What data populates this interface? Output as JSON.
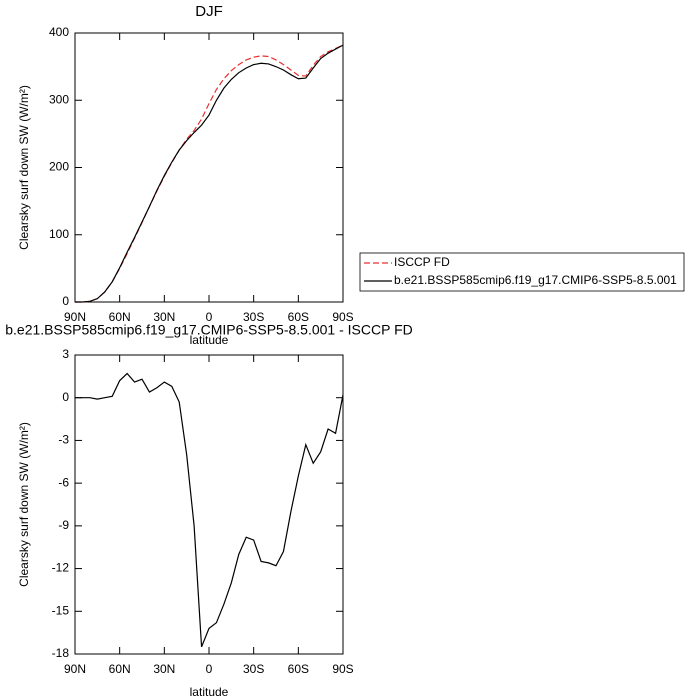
{
  "chart_data": [
    {
      "type": "line",
      "title": "DJF",
      "xlabel": "latitude",
      "ylabel": "Clearsky surf down SW (W/m²)",
      "x": [
        90,
        85,
        80,
        75,
        70,
        65,
        60,
        55,
        50,
        45,
        40,
        35,
        30,
        25,
        20,
        15,
        10,
        5,
        0,
        -5,
        -10,
        -15,
        -20,
        -25,
        -30,
        -35,
        -40,
        -45,
        -50,
        -55,
        -60,
        -65,
        -70,
        -75,
        -80,
        -85,
        -90
      ],
      "series": [
        {
          "name": "ISCCP FD",
          "color": "#e8312f",
          "linestyle": "dashed",
          "values": [
            0,
            0,
            1,
            5,
            15,
            30,
            50,
            72,
            95,
            118,
            142,
            165,
            187,
            207,
            226,
            242,
            255,
            272,
            295,
            316,
            332,
            344,
            353,
            360,
            364,
            366,
            365,
            360,
            353,
            345,
            337,
            336,
            352,
            365,
            372,
            377,
            382
          ]
        },
        {
          "name": "b.e21.BSSP585cmip6.f19_g17.CMIP6-SSP5-8.5.001",
          "color": "#000000",
          "linestyle": "solid",
          "values": [
            0,
            0,
            1,
            5,
            15,
            30,
            51,
            74,
            96,
            119,
            142,
            166,
            188,
            208,
            226,
            240,
            252,
            263,
            278,
            300,
            318,
            331,
            341,
            348,
            353,
            355,
            354,
            350,
            345,
            338,
            332,
            333,
            348,
            362,
            370,
            376,
            382
          ]
        }
      ],
      "xlim": [
        90,
        -90
      ],
      "xticks": [
        {
          "value": 90,
          "label": "90N"
        },
        {
          "value": 60,
          "label": "60N"
        },
        {
          "value": 30,
          "label": "30N"
        },
        0,
        {
          "value": -30,
          "label": "30S"
        },
        {
          "value": -60,
          "label": "60S"
        },
        {
          "value": -90,
          "label": "90S"
        }
      ],
      "ylim": [
        0,
        400
      ],
      "yticks": [
        0,
        100,
        200,
        300,
        400
      ],
      "legend": "right"
    },
    {
      "type": "line",
      "title": "b.e21.BSSP585cmip6.f19_g17.CMIP6-SSP5-8.5.001 - ISCCP FD",
      "xlabel": "latitude",
      "ylabel": "Clearsky surf down SW (W/m²)",
      "x": [
        90,
        85,
        80,
        75,
        70,
        65,
        60,
        55,
        50,
        45,
        40,
        35,
        30,
        25,
        20,
        15,
        10,
        5,
        0,
        -5,
        -10,
        -15,
        -20,
        -25,
        -30,
        -35,
        -40,
        -45,
        -50,
        -55,
        -60,
        -65,
        -70,
        -75,
        -80,
        -85,
        -90
      ],
      "series": [
        {
          "color": "#000000",
          "linestyle": "solid",
          "values": [
            0,
            0,
            0,
            -0.1,
            0,
            0.1,
            1.2,
            1.7,
            1.1,
            1.3,
            0.4,
            0.7,
            1.1,
            0.8,
            -0.3,
            -4,
            -9,
            -17.5,
            -16.2,
            -15.8,
            -14.5,
            -13,
            -11,
            -9.8,
            -10,
            -11.5,
            -11.6,
            -11.8,
            -10.8,
            -8,
            -5.5,
            -3.3,
            -4.6,
            -3.8,
            -2.2,
            -2.5,
            0.2
          ]
        }
      ],
      "xlim": [
        90,
        -90
      ],
      "xticks": [
        {
          "value": 90,
          "label": "90N"
        },
        {
          "value": 60,
          "label": "60N"
        },
        {
          "value": 30,
          "label": "30N"
        },
        0,
        {
          "value": -30,
          "label": "30S"
        },
        {
          "value": -60,
          "label": "60S"
        },
        {
          "value": -90,
          "label": "90S"
        }
      ],
      "ylim": [
        -18,
        3
      ],
      "yticks": [
        -18,
        -15,
        -12,
        -9,
        -6,
        -3,
        0,
        3
      ]
    }
  ]
}
